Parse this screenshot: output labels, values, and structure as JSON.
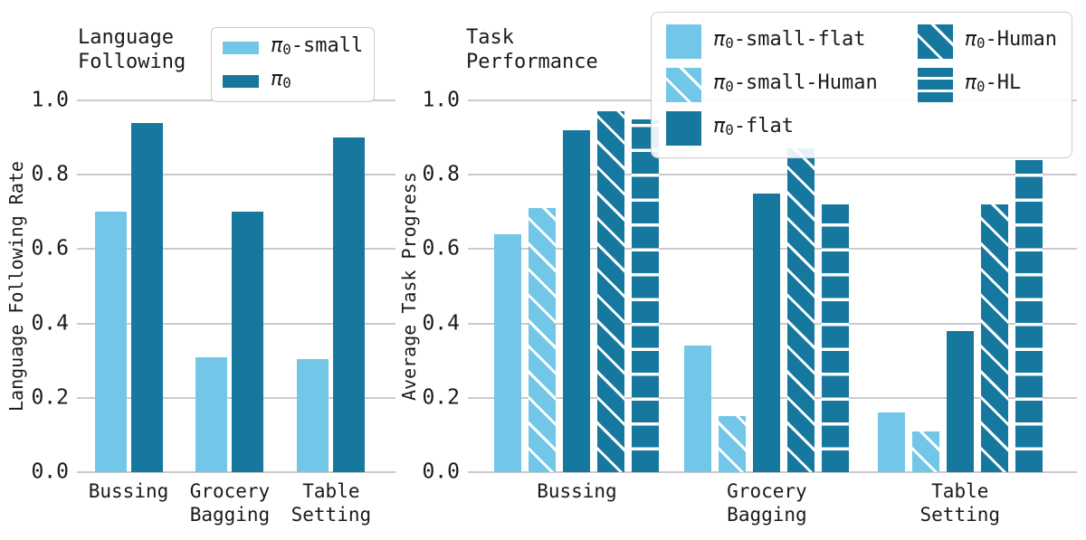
{
  "figure": {
    "background": "#ffffff"
  },
  "colors": {
    "light_blue": "#72C7E8",
    "dark_blue": "#17789F",
    "gridline": "#CBCBCB",
    "text": "#1a1a1a",
    "legend_border": "#CCCCCC",
    "hatch_line": "#FFFFFF"
  },
  "chart_data": [
    {
      "type": "bar",
      "title": "Language Following",
      "ylabel": "Language Following Rate",
      "xlabel": "",
      "categories": [
        "Bussing",
        "Grocery\nBagging",
        "Table\nSetting"
      ],
      "yticks": [
        0.0,
        0.2,
        0.4,
        0.6,
        0.8,
        1.0
      ],
      "ylim": [
        0.0,
        1.0
      ],
      "grid": true,
      "legend_position": "upper-right",
      "series": [
        {
          "name": "π₀-small",
          "color_key": "light_blue",
          "hatch": "none",
          "values": [
            0.7,
            0.31,
            0.305
          ]
        },
        {
          "name": "π₀",
          "color_key": "dark_blue",
          "hatch": "none",
          "values": [
            0.94,
            0.7,
            0.9
          ]
        }
      ]
    },
    {
      "type": "bar",
      "title": "Task Performance",
      "ylabel": "Average Task Progress",
      "xlabel": "",
      "categories": [
        "Bussing",
        "Grocery\nBagging",
        "Table\nSetting"
      ],
      "yticks": [
        0.0,
        0.2,
        0.4,
        0.6,
        0.8,
        1.0
      ],
      "ylim": [
        0.0,
        1.0
      ],
      "grid": true,
      "legend_position": "upper-right",
      "series": [
        {
          "name": "π₀-small-flat",
          "color_key": "light_blue",
          "hatch": "none",
          "values": [
            0.64,
            0.34,
            0.16
          ]
        },
        {
          "name": "π₀-small-Human",
          "color_key": "light_blue",
          "hatch": "diagonal",
          "values": [
            0.71,
            0.15,
            0.11
          ]
        },
        {
          "name": "π₀-flat",
          "color_key": "dark_blue",
          "hatch": "none",
          "values": [
            0.92,
            0.75,
            0.38
          ]
        },
        {
          "name": "π₀-Human",
          "color_key": "dark_blue",
          "hatch": "diagonal",
          "values": [
            0.97,
            0.87,
            0.72
          ]
        },
        {
          "name": "π₀-HL",
          "color_key": "dark_blue",
          "hatch": "horizontal",
          "values": [
            0.95,
            0.72,
            0.84
          ]
        }
      ]
    }
  ]
}
